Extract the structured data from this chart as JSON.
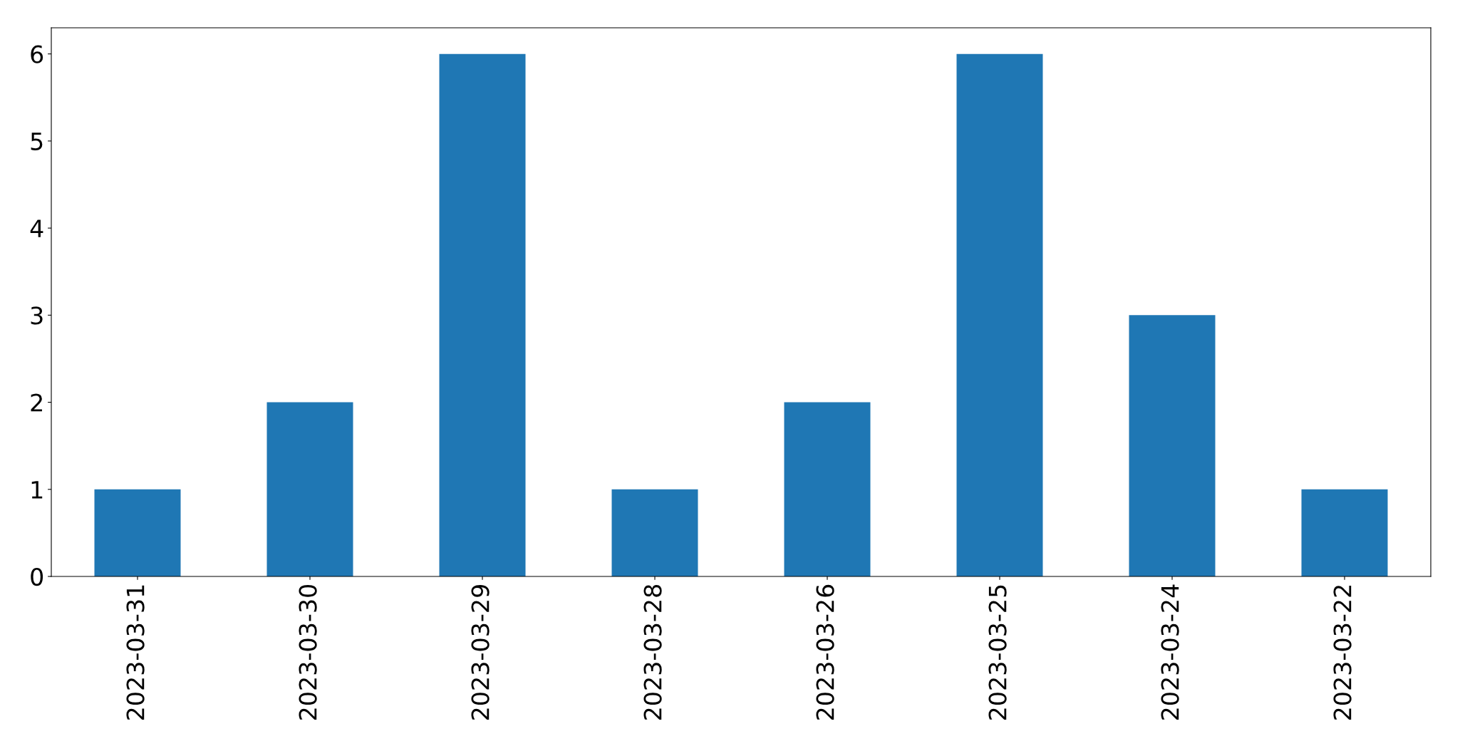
{
  "chart_data": {
    "type": "bar",
    "categories": [
      "2023-03-31",
      "2023-03-30",
      "2023-03-29",
      "2023-03-28",
      "2023-03-26",
      "2023-03-25",
      "2023-03-24",
      "2023-03-22"
    ],
    "values": [
      1,
      2,
      6,
      1,
      2,
      6,
      3,
      1
    ],
    "color": "#1f77b4",
    "ylim": [
      0,
      6.3
    ],
    "yticks": [
      0,
      1,
      2,
      3,
      4,
      5,
      6
    ],
    "grid": false,
    "legend": false
  }
}
